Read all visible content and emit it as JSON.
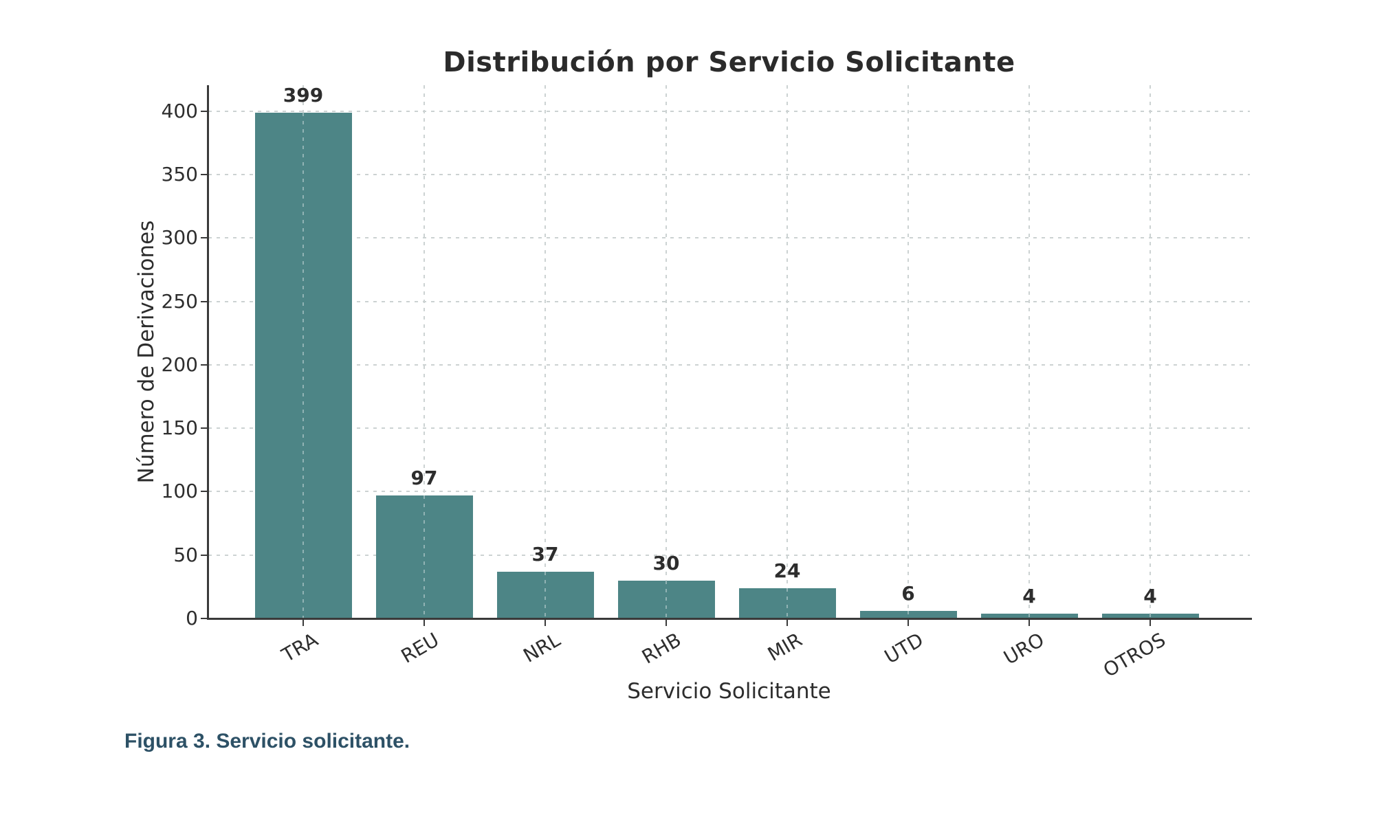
{
  "figure": {
    "caption": "Figura 3. Servicio solicitante."
  },
  "chart_data": {
    "type": "bar",
    "title": "Distribución por Servicio Solicitante",
    "xlabel": "Servicio Solicitante",
    "ylabel": "Número de Derivaciones",
    "categories": [
      "TRA",
      "REU",
      "NRL",
      "RHB",
      "MIR",
      "UTD",
      "URO",
      "OTROS"
    ],
    "values": [
      399,
      97,
      37,
      30,
      24,
      6,
      4,
      4
    ],
    "value_labels": [
      "399",
      "97",
      "37",
      "30",
      "24",
      "6",
      "4",
      "4"
    ],
    "ylim": [
      0,
      420
    ],
    "yticks": [
      0,
      50,
      100,
      150,
      200,
      250,
      300,
      350,
      400
    ],
    "grid": true,
    "grid_style": "dashed",
    "legend": "none",
    "xtick_rotation_deg": 30,
    "colors": {
      "bar": "#4d8586",
      "grid": "#ccd2d2",
      "spine": "#3a3a3a",
      "text": "#2d2d2d",
      "title": "#2b2b2b",
      "caption": "#2d5166",
      "background": "#ffffff"
    }
  }
}
